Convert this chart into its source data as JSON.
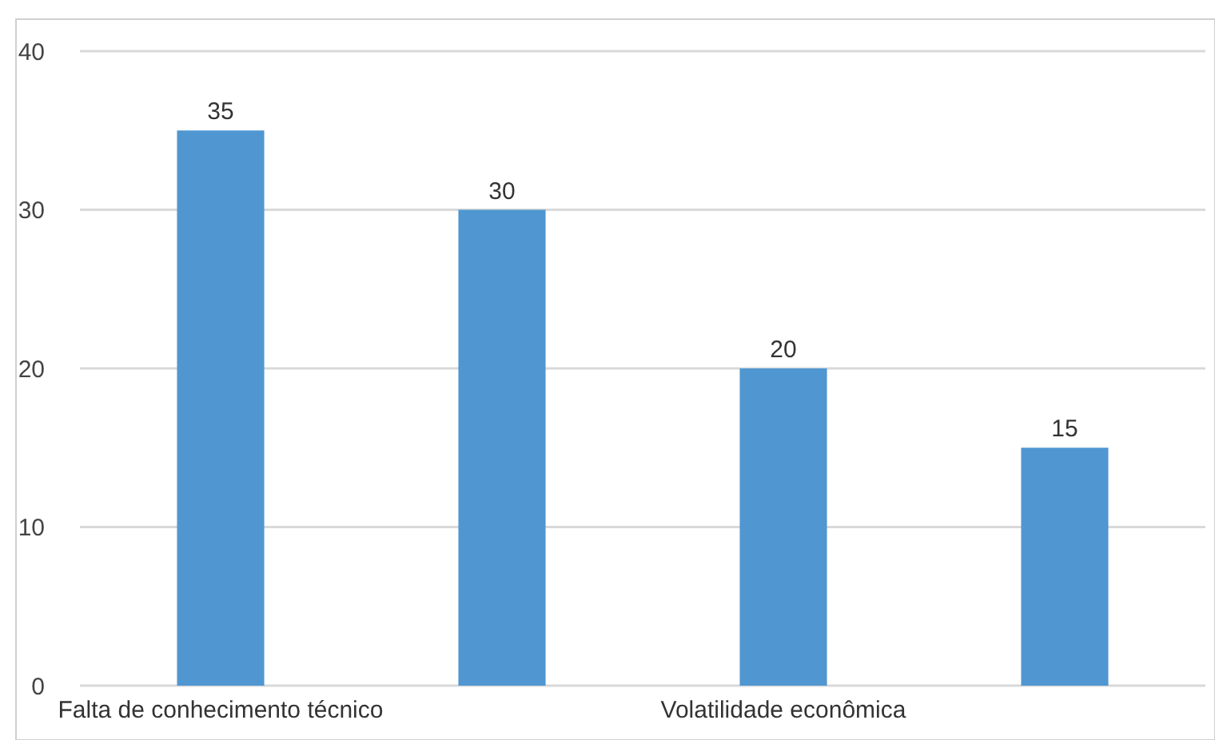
{
  "chart_data": {
    "type": "bar",
    "categories": [
      "Falta de conhecimento técnico",
      null,
      "Volatilidade econômica",
      null
    ],
    "values": [
      35,
      30,
      20,
      15
    ],
    "color": "#5097d1",
    "ylim": [
      0,
      40
    ],
    "yticks": [
      0,
      10,
      20,
      30,
      40
    ],
    "grid": "y",
    "data_labels": true
  }
}
